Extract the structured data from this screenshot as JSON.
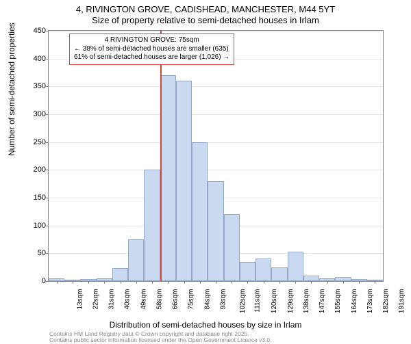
{
  "chart": {
    "type": "histogram",
    "title_line1": "4, RIVINGTON GROVE, CADISHEAD, MANCHESTER, M44 5YT",
    "title_line2": "Size of property relative to semi-detached houses in Irlam",
    "title_fontsize": 13,
    "background_color": "#ffffff",
    "bar_fill": "#c9daf0",
    "bar_border": "#94a8c7",
    "grid_color": "#e5e5e5",
    "axis_color": "#888888",
    "ylabel": "Number of semi-detached properties",
    "xlabel": "Distribution of semi-detached houses by size in Irlam",
    "label_fontsize": 12,
    "tick_fontsize": 11,
    "xtick_fontsize": 10,
    "ylim": [
      0,
      450
    ],
    "ytick_step": 50,
    "x_tick_labels": [
      "13sqm",
      "22sqm",
      "31sqm",
      "40sqm",
      "49sqm",
      "58sqm",
      "66sqm",
      "75sqm",
      "84sqm",
      "93sqm",
      "102sqm",
      "111sqm",
      "120sqm",
      "129sqm",
      "138sqm",
      "147sqm",
      "155sqm",
      "164sqm",
      "173sqm",
      "182sqm",
      "191sqm"
    ],
    "values": [
      5,
      3,
      4,
      5,
      23,
      75,
      200,
      370,
      360,
      250,
      180,
      120,
      35,
      40,
      25,
      53,
      10,
      5,
      8,
      4,
      3
    ],
    "marker": {
      "color": "#d8443b",
      "position_index": 7,
      "annotation_lines": [
        "4 RIVINGTON GROVE: 75sqm",
        "← 38% of semi-detached houses are smaller (635)",
        "61% of semi-detached houses are larger (1,026) →"
      ],
      "annotation_fontsize": 10
    },
    "credits": {
      "line1": "Contains HM Land Registry data © Crown copyright and database right 2025.",
      "line2": "Contains public sector information licensed under the Open Government Licence v3.0.",
      "color": "#888888",
      "fontsize": 8.5
    }
  }
}
